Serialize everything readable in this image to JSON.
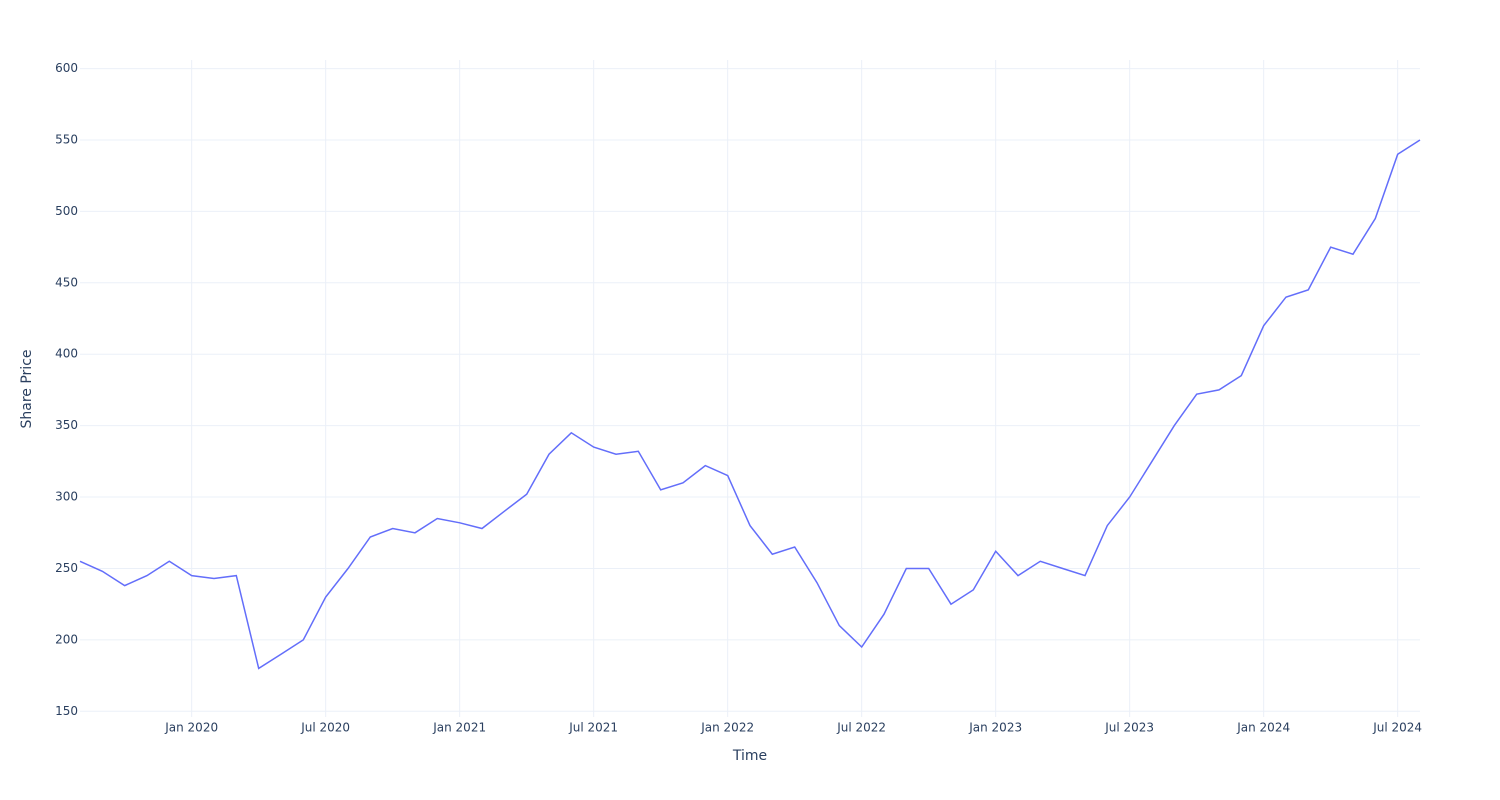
{
  "chart_data": {
    "type": "line",
    "x_label": "Time",
    "y_label": "Share Price",
    "x": [
      "2019-08",
      "2019-09",
      "2019-10",
      "2019-11",
      "2019-12",
      "2020-01",
      "2020-02",
      "2020-03",
      "2020-04",
      "2020-05",
      "2020-06",
      "2020-07",
      "2020-08",
      "2020-09",
      "2020-10",
      "2020-11",
      "2020-12",
      "2021-01",
      "2021-02",
      "2021-03",
      "2021-04",
      "2021-05",
      "2021-06",
      "2021-07",
      "2021-08",
      "2021-09",
      "2021-10",
      "2021-11",
      "2021-12",
      "2022-01",
      "2022-02",
      "2022-03",
      "2022-04",
      "2022-05",
      "2022-06",
      "2022-07",
      "2022-08",
      "2022-09",
      "2022-10",
      "2022-11",
      "2022-12",
      "2023-01",
      "2023-02",
      "2023-03",
      "2023-04",
      "2023-05",
      "2023-06",
      "2023-07",
      "2023-08",
      "2023-09",
      "2023-10",
      "2023-11",
      "2023-12",
      "2024-01",
      "2024-02",
      "2024-03",
      "2024-04",
      "2024-05",
      "2024-06",
      "2024-07",
      "2024-08"
    ],
    "series": [
      {
        "color": "#636efa",
        "values": [
          255,
          248,
          238,
          245,
          255,
          245,
          243,
          245,
          180,
          190,
          200,
          230,
          250,
          272,
          278,
          275,
          285,
          282,
          278,
          290,
          302,
          330,
          345,
          335,
          330,
          332,
          305,
          310,
          322,
          315,
          280,
          260,
          265,
          240,
          210,
          195,
          218,
          250,
          250,
          225,
          235,
          262,
          245,
          255,
          250,
          245,
          280,
          300,
          325,
          350,
          372,
          375,
          385,
          420,
          440,
          445,
          475,
          470,
          495,
          540,
          550
        ]
      }
    ],
    "xlim": [
      "2019-08",
      "2024-08"
    ],
    "xticks": [
      {
        "value": "2020-01",
        "label": "Jan 2020"
      },
      {
        "value": "2020-07",
        "label": "Jul 2020"
      },
      {
        "value": "2021-01",
        "label": "Jan 2021"
      },
      {
        "value": "2021-07",
        "label": "Jul 2021"
      },
      {
        "value": "2022-01",
        "label": "Jan 2022"
      },
      {
        "value": "2022-07",
        "label": "Jul 2022"
      },
      {
        "value": "2023-01",
        "label": "Jan 2023"
      },
      {
        "value": "2023-07",
        "label": "Jul 2023"
      },
      {
        "value": "2024-01",
        "label": "Jan 2024"
      },
      {
        "value": "2024-07",
        "label": "Jul 2024"
      }
    ],
    "ylim": [
      146,
      606
    ],
    "yticks": [
      150,
      200,
      250,
      300,
      350,
      400,
      450,
      500,
      550,
      600
    ],
    "grid": true
  }
}
